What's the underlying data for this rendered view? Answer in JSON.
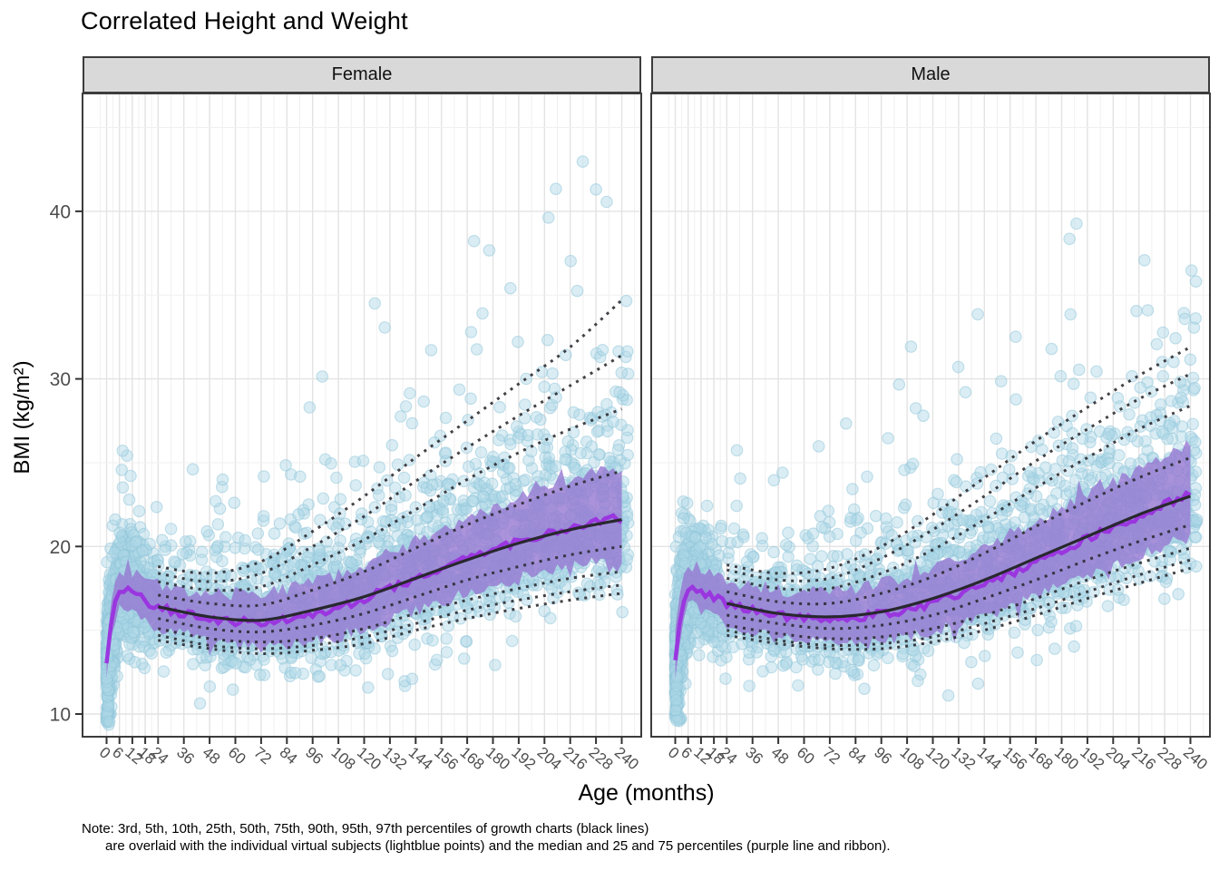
{
  "title": "Correlated Height and Weight",
  "note": {
    "line1": "Note: 3rd, 5th, 10th, 25th, 50th, 75th, 90th, 95th, 97th percentiles of growth charts (black lines)",
    "line2": "are overlaid with the individual virtual subjects (lightblue points) and the median and 25 and 75 percentiles (purple line and ribbon)."
  },
  "chart_data": {
    "type": "scatter",
    "title": "Correlated Height and Weight",
    "xlabel": "Age (months)",
    "ylabel": "BMI (kg/m²)",
    "x_ticks": [
      0,
      6,
      12,
      18,
      24,
      36,
      48,
      60,
      72,
      84,
      96,
      108,
      120,
      132,
      144,
      156,
      168,
      180,
      192,
      204,
      216,
      228,
      240
    ],
    "y_ticks": [
      10,
      20,
      30,
      40
    ],
    "xlim": [
      -11,
      251
    ],
    "ylim": [
      8.65,
      47.0
    ],
    "grid": true,
    "legend": false,
    "percentile_labels": [
      "3rd",
      "5th",
      "10th",
      "25th",
      "50th",
      "75th",
      "90th",
      "95th",
      "97th"
    ],
    "percentile_ages": [
      24,
      48,
      72,
      96,
      120,
      144,
      168,
      192,
      216,
      240
    ],
    "facets": [
      {
        "label": "Female",
        "percentiles": {
          "P3": [
            14.4,
            13.9,
            13.6,
            13.8,
            14.2,
            15.0,
            15.7,
            16.3,
            16.8,
            17.2
          ],
          "P5": [
            14.7,
            14.1,
            13.9,
            14.1,
            14.6,
            15.4,
            16.2,
            16.8,
            17.3,
            17.7
          ],
          "P10": [
            15.1,
            14.5,
            14.3,
            14.5,
            15.1,
            16.0,
            16.8,
            17.5,
            18.1,
            18.5
          ],
          "P25": [
            15.7,
            15.1,
            14.9,
            15.3,
            16.0,
            17.0,
            18.0,
            18.8,
            19.5,
            20.0
          ],
          "P50": [
            16.4,
            15.8,
            15.6,
            16.2,
            17.0,
            18.1,
            19.2,
            20.2,
            21.0,
            21.6
          ],
          "P75": [
            17.1,
            16.6,
            16.5,
            17.4,
            18.5,
            19.9,
            21.3,
            22.5,
            23.6,
            24.5
          ],
          "P90": [
            17.9,
            17.4,
            17.6,
            18.9,
            20.4,
            22.2,
            24.0,
            25.6,
            27.0,
            28.2
          ],
          "P95": [
            18.4,
            17.9,
            18.4,
            20.0,
            21.8,
            23.9,
            25.9,
            27.8,
            29.6,
            31.4
          ],
          "P97": [
            18.8,
            18.4,
            19.1,
            20.9,
            23.0,
            25.3,
            27.5,
            29.7,
            31.9,
            34.7
          ]
        },
        "subject_median": {
          "ages": [
            0,
            1,
            2,
            4,
            6,
            9,
            12,
            16,
            20,
            24,
            30,
            36,
            48,
            60,
            72,
            84,
            96,
            108,
            120,
            132,
            144,
            156,
            168,
            180,
            192,
            204,
            216,
            228,
            240
          ],
          "values": [
            12.8,
            14.2,
            15.3,
            16.6,
            17.3,
            17.4,
            17.2,
            16.9,
            16.6,
            16.4,
            16.2,
            16.0,
            15.7,
            15.5,
            15.45,
            15.6,
            15.95,
            16.35,
            16.9,
            17.45,
            18.05,
            18.65,
            19.25,
            19.8,
            20.3,
            20.75,
            21.15,
            21.5,
            21.7
          ]
        },
        "ribbon": {
          "lower_halfwidth_start": 1.05,
          "lower_halfwidth_end": 2.5,
          "upper_halfwidth_start": 1.15,
          "upper_halfwidth_end": 3.0
        },
        "scatter": {
          "n": 3000,
          "bmi_cap": 46.6
        }
      },
      {
        "label": "Male",
        "percentiles": {
          "P3": [
            14.7,
            14.2,
            13.9,
            13.9,
            14.3,
            15.0,
            15.9,
            16.9,
            17.8,
            18.7
          ],
          "P5": [
            15.0,
            14.4,
            14.1,
            14.2,
            14.6,
            15.4,
            16.3,
            17.3,
            18.3,
            19.2
          ],
          "P10": [
            15.3,
            14.8,
            14.5,
            14.6,
            15.1,
            15.9,
            16.9,
            18.0,
            19.0,
            19.9
          ],
          "P25": [
            15.9,
            15.4,
            15.1,
            15.3,
            15.9,
            16.9,
            18.0,
            19.2,
            20.3,
            21.3
          ],
          "P50": [
            16.6,
            16.0,
            15.8,
            16.1,
            16.9,
            18.0,
            19.3,
            20.6,
            21.9,
            23.0
          ],
          "P75": [
            17.3,
            16.7,
            16.6,
            17.2,
            18.2,
            19.6,
            21.2,
            22.7,
            24.1,
            25.3
          ],
          "P90": [
            18.1,
            17.5,
            17.5,
            18.4,
            19.8,
            21.6,
            23.5,
            25.3,
            27.0,
            28.4
          ],
          "P95": [
            18.6,
            18.0,
            18.1,
            19.3,
            21.0,
            23.0,
            25.1,
            27.0,
            28.8,
            30.3
          ],
          "P97": [
            18.9,
            18.4,
            18.7,
            20.0,
            21.9,
            24.1,
            26.3,
            28.3,
            30.2,
            31.9
          ]
        },
        "subject_median": {
          "ages": [
            0,
            1,
            2,
            4,
            6,
            9,
            12,
            16,
            20,
            24,
            30,
            36,
            48,
            60,
            72,
            84,
            96,
            108,
            120,
            132,
            144,
            156,
            168,
            180,
            192,
            204,
            216,
            228,
            240
          ],
          "values": [
            13.0,
            14.4,
            15.5,
            16.8,
            17.5,
            17.6,
            17.4,
            17.1,
            16.85,
            16.6,
            16.35,
            16.15,
            15.85,
            15.7,
            15.65,
            15.75,
            15.95,
            16.25,
            16.65,
            17.15,
            17.75,
            18.4,
            19.05,
            19.75,
            20.45,
            21.15,
            21.8,
            22.5,
            23.1
          ]
        },
        "ribbon": {
          "lower_halfwidth_start": 1.05,
          "lower_halfwidth_end": 2.5,
          "upper_halfwidth_start": 1.15,
          "upper_halfwidth_end": 3.0
        },
        "scatter": {
          "n": 3000,
          "bmi_cap": 42.4
        }
      }
    ],
    "colors": {
      "points_fill": "#ADD8E6",
      "points_stroke": "#8FC6DA",
      "ribbon_fill": "#9678D2",
      "median_line": "#9A2CE0",
      "growth_chart_line": "#28282E",
      "strip_bg": "#D9D9D9",
      "panel_border": "#3C3C3C",
      "grid_major": "#E3E3E3",
      "grid_minor": "#F0F0F0",
      "tick_label": "#4D4D4D"
    }
  }
}
